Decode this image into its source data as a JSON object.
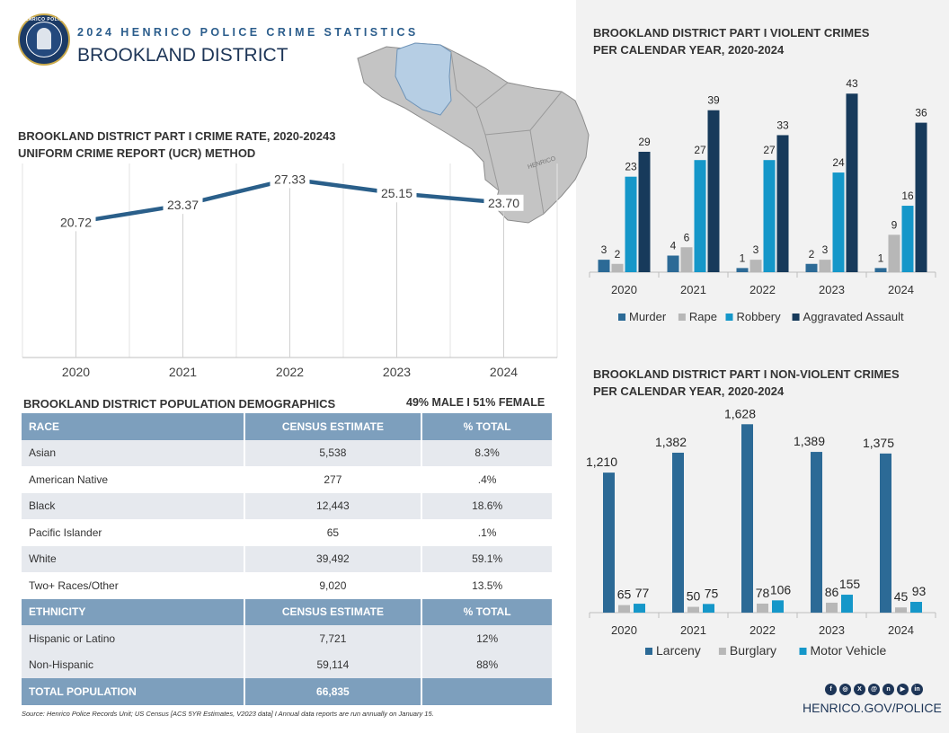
{
  "header": {
    "subtitle": "2024 HENRICO POLICE CRIME STATISTICS",
    "title": "BROOKLAND DISTRICT",
    "badge_text": "HENRICO POLICE"
  },
  "map": {
    "label": "HENRICO"
  },
  "rate_section": {
    "title_line1": "BROOKLAND DISTRICT PART I CRIME RATE, 2020-20243",
    "title_line2": "UNIFORM CRIME REPORT (UCR) METHOD"
  },
  "violent_section": {
    "title_line1": "BROOKLAND DISTRICT PART I VIOLENT CRIMES",
    "title_line2": "PER CALENDAR YEAR, 2020-2024"
  },
  "nonviolent_section": {
    "title_line1": "BROOKLAND DISTRICT PART I NON-VIOLENT CRIMES",
    "title_line2": "PER CALENDAR YEAR, 2020-2024"
  },
  "demographics": {
    "title": "BROOKLAND DISTRICT POPULATION DEMOGRAPHICS",
    "gender": "49% MALE  I  51% FEMALE",
    "race_header": {
      "col1": "RACE",
      "col2": "CENSUS ESTIMATE",
      "col3": "% TOTAL"
    },
    "race_rows": [
      {
        "label": "Asian",
        "estimate": "5,538",
        "pct": "8.3%"
      },
      {
        "label": "American Native",
        "estimate": "277",
        "pct": ".4%"
      },
      {
        "label": "Black",
        "estimate": "12,443",
        "pct": "18.6%"
      },
      {
        "label": "Pacific Islander",
        "estimate": "65",
        "pct": ".1%"
      },
      {
        "label": "White",
        "estimate": "39,492",
        "pct": "59.1%"
      },
      {
        "label": "Two+ Races/Other",
        "estimate": "9,020",
        "pct": "13.5%"
      }
    ],
    "ethnicity_header": {
      "col1": "ETHNICITY",
      "col2": "CENSUS ESTIMATE",
      "col3": "% TOTAL"
    },
    "ethnicity_rows": [
      {
        "label": "Hispanic or Latino",
        "estimate": "7,721",
        "pct": "12%"
      },
      {
        "label": "Non-Hispanic",
        "estimate": "59,114",
        "pct": "88%"
      }
    ],
    "total": {
      "label": "TOTAL POPULATION",
      "estimate": "66,835"
    }
  },
  "footer": {
    "source": "Source: Henrico Police Records Unit; US Census [ACS 5YR Estimates, V2023 data] I  Annual data reports are run annually on January 15.",
    "website": "HENRICO.GOV/POLICE",
    "social_icons": [
      "facebook-icon",
      "instagram-icon",
      "x-icon",
      "threads-icon",
      "nextdoor-icon",
      "youtube-icon",
      "linkedin-icon"
    ]
  },
  "colors": {
    "navy": "#1d3557",
    "line": "#2a5f8a",
    "murder": "#2c6a96",
    "gray": "#b7b7b7",
    "cyan": "#1597c9",
    "dark": "#173a5b"
  },
  "chart_data": [
    {
      "id": "crime_rate",
      "type": "line",
      "title": "BROOKLAND DISTRICT PART I CRIME RATE, 2020-20243",
      "subtitle": "UNIFORM CRIME REPORT (UCR) METHOD",
      "x": [
        "2020",
        "2021",
        "2022",
        "2023",
        "2024"
      ],
      "values": [
        20.72,
        23.37,
        27.33,
        25.15,
        23.7
      ],
      "labels": [
        "20.72",
        "23.37",
        "27.33",
        "25.15",
        "23.70"
      ],
      "ylim": [
        0,
        30
      ]
    },
    {
      "id": "violent",
      "type": "bar",
      "title": "BROOKLAND DISTRICT PART I VIOLENT CRIMES PER CALENDAR YEAR, 2020-2024",
      "categories": [
        "2020",
        "2021",
        "2022",
        "2023",
        "2024"
      ],
      "series": [
        {
          "name": "Murder",
          "values": [
            3,
            4,
            1,
            2,
            1
          ],
          "labels": [
            "3",
            "4",
            "1",
            "2",
            "1"
          ]
        },
        {
          "name": "Rape",
          "values": [
            2,
            6,
            3,
            3,
            9
          ],
          "labels": [
            "2",
            "6",
            "3",
            "3",
            "9"
          ]
        },
        {
          "name": "Robbery",
          "values": [
            23,
            27,
            27,
            24,
            16
          ],
          "labels": [
            "23",
            "27",
            "27",
            "24",
            "16"
          ]
        },
        {
          "name": "Aggravated Assault",
          "values": [
            29,
            39,
            33,
            43,
            36
          ],
          "labels": [
            "29",
            "39",
            "33",
            "43",
            "36"
          ]
        }
      ],
      "legend": "bottom",
      "ylim": [
        0,
        45
      ]
    },
    {
      "id": "nonviolent",
      "type": "bar",
      "title": "BROOKLAND DISTRICT PART I NON-VIOLENT CRIMES PER CALENDAR YEAR, 2020-2024",
      "categories": [
        "2020",
        "2021",
        "2022",
        "2023",
        "2024"
      ],
      "series": [
        {
          "name": "Larceny",
          "values": [
            1210,
            1382,
            1628,
            1389,
            1375
          ],
          "labels": [
            "1,210",
            "1,382",
            "1,628",
            "1,389",
            "1,375"
          ]
        },
        {
          "name": "Burglary",
          "values": [
            65,
            50,
            78,
            86,
            45
          ],
          "labels": [
            "65",
            "50",
            "78",
            "86",
            "45"
          ]
        },
        {
          "name": "Motor Vehicle",
          "values": [
            77,
            75,
            106,
            155,
            93
          ],
          "labels": [
            "77",
            "75",
            "106",
            "155",
            "93"
          ]
        }
      ],
      "legend": "bottom",
      "ylim": [
        0,
        1700
      ]
    }
  ]
}
